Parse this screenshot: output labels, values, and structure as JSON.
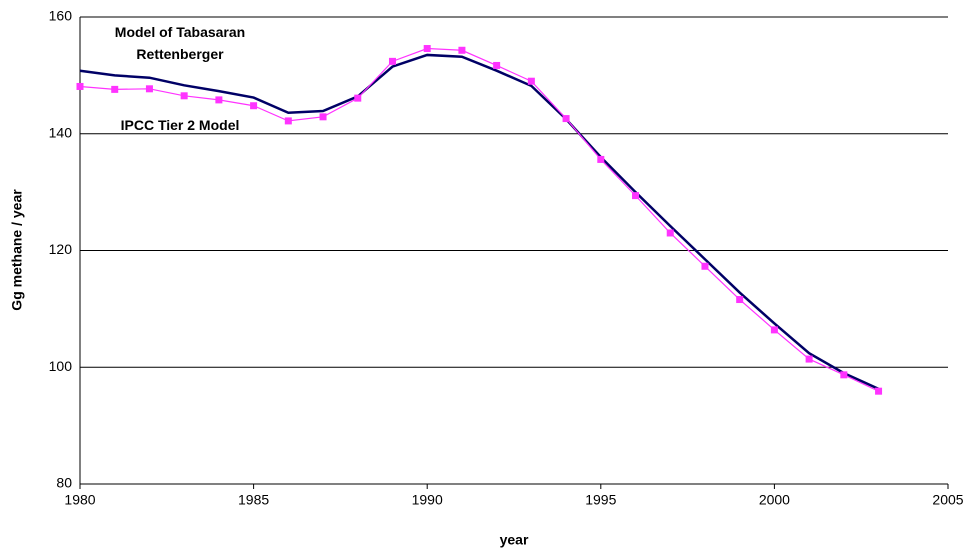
{
  "chart_data": {
    "type": "line",
    "x_label": "year",
    "y_label": "Gg methane / year",
    "x": [
      1980,
      1981,
      1982,
      1983,
      1984,
      1985,
      1986,
      1987,
      1988,
      1989,
      1990,
      1991,
      1992,
      1993,
      1994,
      1995,
      1996,
      1997,
      1998,
      1999,
      2000,
      2001,
      2002,
      2003
    ],
    "series": [
      {
        "name": "Model of Tabasaran Rettenberger",
        "color": "#000066",
        "values": [
          150.8,
          150.0,
          149.6,
          148.3,
          147.3,
          146.2,
          143.6,
          143.9,
          146.4,
          151.5,
          153.5,
          153.2,
          150.8,
          148.2,
          142.5,
          136.0,
          130.0,
          124.2,
          118.5,
          112.8,
          107.5,
          102.4,
          99.0,
          96.3
        ]
      },
      {
        "name": "IPCC Tier 2 Model",
        "color": "#ff33ff",
        "marker": "square",
        "values": [
          148.1,
          147.6,
          147.7,
          146.5,
          145.8,
          144.8,
          142.2,
          142.9,
          146.1,
          152.4,
          154.6,
          154.3,
          151.7,
          149.0,
          142.6,
          135.6,
          129.4,
          123.0,
          117.3,
          111.6,
          106.4,
          101.4,
          98.7,
          95.9
        ]
      }
    ],
    "xlim": [
      1980,
      2005
    ],
    "xticks": [
      1980,
      1985,
      1990,
      1995,
      2000,
      2005
    ],
    "ylim": [
      80,
      160
    ],
    "yticks": [
      80,
      100,
      120,
      140,
      160
    ],
    "grid": true
  }
}
